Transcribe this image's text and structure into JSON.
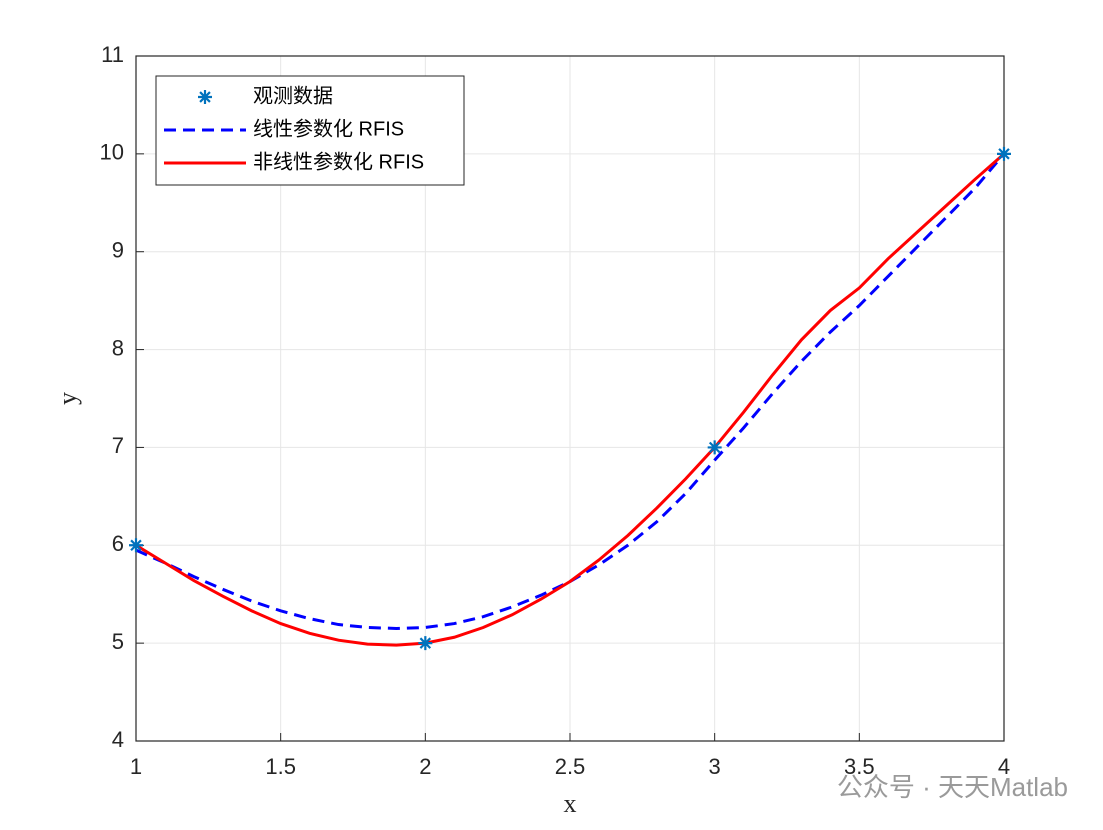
{
  "chart_data": {
    "type": "line",
    "xlabel": "x",
    "ylabel": "y",
    "xlim": [
      1,
      4
    ],
    "ylim": [
      4,
      11
    ],
    "xticks": [
      1,
      1.5,
      2,
      2.5,
      3,
      3.5,
      4
    ],
    "yticks": [
      4,
      5,
      6,
      7,
      8,
      9,
      10,
      11
    ],
    "grid": true,
    "legend_position": "upper-left",
    "series": [
      {
        "name": "观测数据",
        "type": "scatter",
        "marker": "*",
        "color": "#0072BD",
        "x": [
          1,
          2,
          3,
          4
        ],
        "values": [
          6,
          5,
          7,
          10
        ]
      },
      {
        "name": "线性参数化 RFIS",
        "type": "line",
        "line_style": "dashed",
        "color": "#0000FF",
        "x": [
          1.0,
          1.1,
          1.2,
          1.3,
          1.4,
          1.5,
          1.6,
          1.7,
          1.8,
          1.9,
          2.0,
          2.1,
          2.2,
          2.3,
          2.4,
          2.5,
          2.6,
          2.7,
          2.8,
          2.9,
          3.0,
          3.1,
          3.2,
          3.3,
          3.4,
          3.5,
          3.6,
          3.7,
          3.8,
          3.9,
          4.0
        ],
        "values": [
          5.95,
          5.82,
          5.68,
          5.55,
          5.43,
          5.33,
          5.25,
          5.19,
          5.16,
          5.15,
          5.16,
          5.2,
          5.27,
          5.37,
          5.49,
          5.63,
          5.8,
          6.0,
          6.24,
          6.53,
          6.87,
          7.2,
          7.55,
          7.88,
          8.18,
          8.45,
          8.75,
          9.05,
          9.35,
          9.65,
          10
        ]
      },
      {
        "name": "非线性参数化 RFIS",
        "type": "line",
        "line_style": "solid",
        "color": "#FF0000",
        "x": [
          1.0,
          1.1,
          1.2,
          1.3,
          1.4,
          1.5,
          1.6,
          1.7,
          1.8,
          1.9,
          2.0,
          2.1,
          2.2,
          2.3,
          2.4,
          2.5,
          2.6,
          2.7,
          2.8,
          2.9,
          3.0,
          3.1,
          3.2,
          3.3,
          3.4,
          3.5,
          3.6,
          3.7,
          3.8,
          3.9,
          4.0
        ],
        "values": [
          6.0,
          5.82,
          5.64,
          5.48,
          5.33,
          5.2,
          5.1,
          5.03,
          4.99,
          4.98,
          5.0,
          5.06,
          5.16,
          5.29,
          5.45,
          5.63,
          5.85,
          6.1,
          6.38,
          6.68,
          7.0,
          7.36,
          7.74,
          8.1,
          8.4,
          8.63,
          8.93,
          9.2,
          9.47,
          9.74,
          10
        ]
      }
    ],
    "watermark": "公众号 · 天天Matlab"
  }
}
